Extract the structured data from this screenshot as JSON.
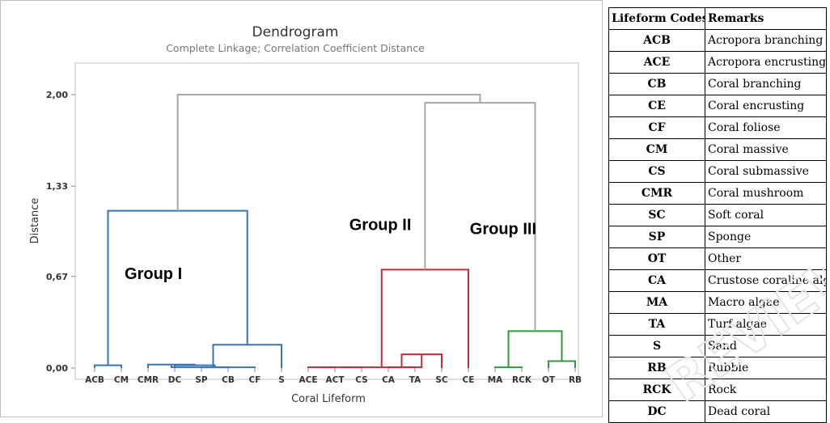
{
  "chart_data": {
    "type": "dendrogram",
    "title": "Dendrogram",
    "subtitle": "Complete Linkage; Correlation Coefficient Distance",
    "xlabel": "Coral Lifeform",
    "ylabel": "Distance",
    "ylim": [
      0,
      2.18
    ],
    "yticks": [
      0,
      0.67,
      1.33,
      2.0
    ],
    "ytick_labels": [
      "0,00",
      "0,67",
      "1,33",
      "2,00"
    ],
    "leaves": [
      "ACB",
      "CM",
      "CMR",
      "DC",
      "SP",
      "CB",
      "CF",
      "S",
      "ACE",
      "ACT",
      "CS",
      "CA",
      "TA",
      "SC",
      "CE",
      "MA",
      "RCK",
      "OT",
      "RB"
    ],
    "colors": {
      "group1": "#3a73b6",
      "group2": "#b5303a",
      "group3": "#2f9a3c",
      "root": "#a6a6a6"
    },
    "merges": [
      {
        "id": "n1",
        "children": [
          "ACB",
          "CM"
        ],
        "height": 0.02,
        "color": "#3a73b6"
      },
      {
        "id": "n2",
        "children": [
          "SP",
          "CB"
        ],
        "height": 0.005,
        "color": "#3a73b6"
      },
      {
        "id": "n3",
        "children": [
          "DC",
          "n2"
        ],
        "height": 0.02,
        "color": "#3a73b6"
      },
      {
        "id": "n4",
        "children": [
          "CMR",
          "n3"
        ],
        "height": 0.025,
        "color": "#3a73b6"
      },
      {
        "id": "n5",
        "children": [
          "n4",
          "CF"
        ],
        "height": 0.005,
        "color": "#3a73b6"
      },
      {
        "id": "n6",
        "children": [
          "n5",
          "S"
        ],
        "height": 0.17,
        "color": "#3a73b6"
      },
      {
        "id": "n7",
        "children": [
          "n1",
          "n6"
        ],
        "height": 1.15,
        "color": "#3a73b6"
      },
      {
        "id": "n8",
        "children": [
          "ACE",
          "ACT"
        ],
        "height": 0.005,
        "color": "#b5303a"
      },
      {
        "id": "n9",
        "children": [
          "CA",
          "TA"
        ],
        "height": 0.005,
        "color": "#b5303a"
      },
      {
        "id": "n10",
        "children": [
          "n8",
          "CS"
        ],
        "height": 0.005,
        "color": "#b5303a"
      },
      {
        "id": "n11",
        "children": [
          "n9",
          "SC"
        ],
        "height": 0.1,
        "color": "#b5303a"
      },
      {
        "id": "n12",
        "children": [
          "n10",
          "n11"
        ],
        "height": 0.005,
        "color": "#b5303a"
      },
      {
        "id": "n13",
        "children": [
          "n12",
          "CE"
        ],
        "height": 0.72,
        "color": "#b5303a"
      },
      {
        "id": "n14",
        "children": [
          "OT",
          "RB"
        ],
        "height": 0.05,
        "color": "#2f9a3c"
      },
      {
        "id": "n15",
        "children": [
          "MA",
          "RCK"
        ],
        "height": 0.005,
        "color": "#2f9a3c"
      },
      {
        "id": "n16",
        "children": [
          "n15",
          "n14"
        ],
        "height": 0.27,
        "color": "#2f9a3c"
      },
      {
        "id": "n17",
        "children": [
          "n13",
          "n16"
        ],
        "height": 1.94,
        "color": "#a6a6a6"
      },
      {
        "id": "n18",
        "children": [
          "n7",
          "n17"
        ],
        "height": 2.0,
        "color": "#a6a6a6"
      }
    ],
    "annotations": [
      {
        "text": "Group I",
        "x_leaf": 2.2,
        "y": 0.65
      },
      {
        "text": "Group II",
        "x_leaf": 10.7,
        "y": 1.01
      },
      {
        "text": "Group III",
        "x_leaf": 15.3,
        "y": 0.98
      }
    ]
  },
  "legend_table": {
    "headers": [
      "Lifeform Codes",
      "Remarks"
    ],
    "rows": [
      [
        "ACB",
        "Acropora branching"
      ],
      [
        "ACE",
        "Acropora encrusting"
      ],
      [
        "CB",
        "Coral branching"
      ],
      [
        "CE",
        "Coral encrusting"
      ],
      [
        "CF",
        "Coral foliose"
      ],
      [
        "CM",
        "Coral massive"
      ],
      [
        "CS",
        "Coral submassive"
      ],
      [
        "CMR",
        "Coral mushroom"
      ],
      [
        "SC",
        "Soft coral"
      ],
      [
        "SP",
        "Sponge"
      ],
      [
        "OT",
        "Other"
      ],
      [
        "CA",
        "Crustose coraline algae"
      ],
      [
        "MA",
        "Macro algae"
      ],
      [
        "TA",
        "Turf algae"
      ],
      [
        "S",
        "Sand"
      ],
      [
        "RB",
        "Rubble"
      ],
      [
        "RCK",
        "Rock"
      ],
      [
        "DC",
        "Dead coral"
      ]
    ]
  },
  "watermark": "REVIEW"
}
